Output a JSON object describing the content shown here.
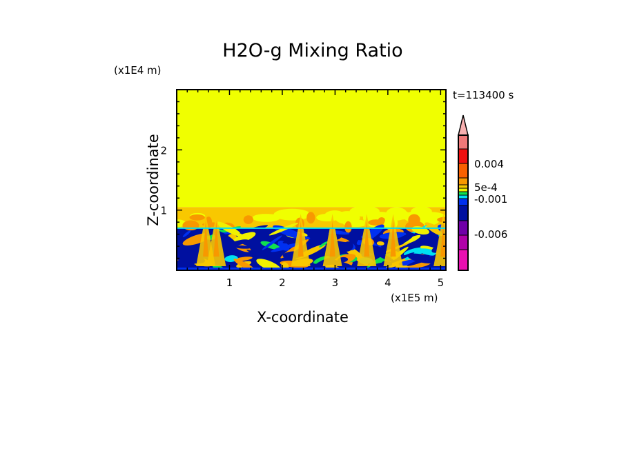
{
  "chart_data": {
    "type": "heatmap",
    "title": "H2O-g Mixing Ratio",
    "xlabel": "X-coordinate",
    "ylabel": "Z-coordinate",
    "x_scale_label": "(x1E5 m)",
    "y_scale_label": "(x1E4 m)",
    "annotation": "t=113400 s",
    "xlim": [
      0,
      5.1
    ],
    "ylim": [
      0,
      3
    ],
    "xticks": [
      {
        "value": 1,
        "label": "1"
      },
      {
        "value": 2,
        "label": "2"
      },
      {
        "value": 3,
        "label": "3"
      },
      {
        "value": 4,
        "label": "4"
      },
      {
        "value": 5,
        "label": "5"
      }
    ],
    "yticks": [
      {
        "value": 1,
        "label": "1"
      },
      {
        "value": 2,
        "label": "2"
      }
    ],
    "colorbar": {
      "extend": "max",
      "colors_bottom_to_top": [
        "#e810b0",
        "#b000a8",
        "#7000a8",
        "#0010a0",
        "#0030f0",
        "#00e0f0",
        "#10e050",
        "#f0f000",
        "#f8c800",
        "#f89800",
        "#f86000",
        "#f01010",
        "#f07878"
      ],
      "extend_color": "#f8b0b0",
      "labels": [
        {
          "label": "0.004",
          "level": "between red and orange-red"
        },
        {
          "label": "5e-4",
          "level": "gold"
        },
        {
          "label": "-0.001",
          "level": "cyan"
        },
        {
          "label": "-0.006",
          "level": "purple"
        }
      ]
    },
    "field_description_regions": [
      {
        "z_range": [
          1.05,
          3.0
        ],
        "color": "#f0ff00"
      },
      {
        "z_range": [
          0.7,
          1.05
        ],
        "color": "#f8c800"
      },
      {
        "z_range": [
          0.0,
          0.7
        ],
        "color": "#0010a0"
      }
    ]
  }
}
